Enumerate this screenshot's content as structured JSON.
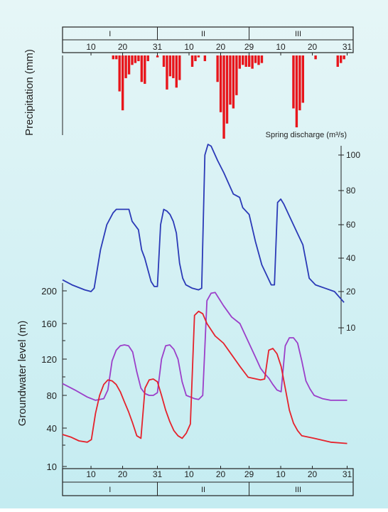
{
  "colors": {
    "bg_top": "#e6f6f7",
    "bg_bottom": "#c4ecf1",
    "precip": "#e8151b",
    "discharge": "#2b3ab7",
    "gw_upper": "#9b3fc9",
    "gw_lower": "#e5222c",
    "ink": "#222222"
  },
  "chart_data": {
    "type": "line",
    "x_unit": "day",
    "months": [
      "I",
      "II",
      "III"
    ],
    "day_ticks": [
      "10",
      "20",
      "31",
      "10",
      "20",
      "29",
      "10",
      "20",
      "31"
    ],
    "precipitation": {
      "ylabel": "Precipitation (mm)",
      "type": "bar",
      "values": [
        [
          17,
          4
        ],
        [
          18,
          4
        ],
        [
          19,
          38
        ],
        [
          20,
          58
        ],
        [
          21,
          24
        ],
        [
          22,
          20
        ],
        [
          23,
          10
        ],
        [
          24,
          8
        ],
        [
          25,
          6
        ],
        [
          26,
          28
        ],
        [
          27,
          30
        ],
        [
          28,
          6
        ],
        [
          31,
          2
        ],
        [
          33,
          12
        ],
        [
          34,
          36
        ],
        [
          35,
          22
        ],
        [
          36,
          24
        ],
        [
          37,
          34
        ],
        [
          38,
          26
        ],
        [
          42,
          12
        ],
        [
          43,
          6
        ],
        [
          44,
          2
        ],
        [
          46,
          6
        ],
        [
          50,
          28
        ],
        [
          51,
          60
        ],
        [
          52,
          88
        ],
        [
          53,
          72
        ],
        [
          54,
          52
        ],
        [
          55,
          56
        ],
        [
          56,
          42
        ],
        [
          57,
          14
        ],
        [
          58,
          10
        ],
        [
          59,
          12
        ],
        [
          60,
          12
        ],
        [
          61,
          14
        ],
        [
          62,
          8
        ],
        [
          63,
          10
        ],
        [
          64,
          8
        ],
        [
          74,
          56
        ],
        [
          75,
          76
        ],
        [
          76,
          58
        ],
        [
          77,
          50
        ],
        [
          81,
          4
        ],
        [
          88,
          12
        ],
        [
          89,
          8
        ],
        [
          90,
          4
        ]
      ]
    },
    "discharge": {
      "ylabel": "Spring discharge (m³/s)",
      "yticks": [
        "10",
        "20",
        "40",
        "60",
        "80",
        "100"
      ],
      "values": [
        [
          1,
          27
        ],
        [
          4,
          24
        ],
        [
          8,
          21
        ],
        [
          10,
          20
        ],
        [
          11,
          22
        ],
        [
          13,
          45
        ],
        [
          15,
          60
        ],
        [
          17,
          67
        ],
        [
          18,
          69
        ],
        [
          20,
          69
        ],
        [
          22,
          69
        ],
        [
          23,
          62
        ],
        [
          25,
          57
        ],
        [
          26,
          45
        ],
        [
          27,
          40
        ],
        [
          29,
          26
        ],
        [
          30,
          23
        ],
        [
          31,
          23
        ],
        [
          32,
          60
        ],
        [
          33,
          69
        ],
        [
          34,
          68
        ],
        [
          35,
          66
        ],
        [
          36,
          62
        ],
        [
          37,
          55
        ],
        [
          38,
          37
        ],
        [
          39,
          28
        ],
        [
          40,
          24
        ],
        [
          42,
          22
        ],
        [
          44,
          21
        ],
        [
          45,
          22
        ],
        [
          46,
          100
        ],
        [
          47,
          106
        ],
        [
          48,
          105
        ],
        [
          50,
          97
        ],
        [
          52,
          90
        ],
        [
          55,
          78
        ],
        [
          57,
          76
        ],
        [
          58,
          70
        ],
        [
          60,
          66
        ],
        [
          62,
          50
        ],
        [
          64,
          36
        ],
        [
          66,
          28
        ],
        [
          67,
          24
        ],
        [
          68,
          24
        ],
        [
          69,
          73
        ],
        [
          70,
          75
        ],
        [
          71,
          72
        ],
        [
          73,
          64
        ],
        [
          75,
          56
        ],
        [
          77,
          48
        ],
        [
          78,
          38
        ],
        [
          79,
          28
        ],
        [
          81,
          24
        ],
        [
          84,
          22
        ],
        [
          87,
          20
        ],
        [
          90,
          17
        ]
      ]
    },
    "groundwater": {
      "ylabel": "Groundwater level (m)",
      "yticks": [
        "10",
        "40",
        "80",
        "120",
        "160",
        "200"
      ],
      "series": [
        {
          "values": [
            [
              1,
              93
            ],
            [
              4,
              86
            ],
            [
              7,
              78
            ],
            [
              9,
              74
            ],
            [
              11,
              76
            ],
            [
              12,
              86
            ],
            [
              13,
              118
            ],
            [
              14,
              130
            ],
            [
              15,
              135
            ],
            [
              16,
              136
            ],
            [
              17,
              135
            ],
            [
              18,
              128
            ],
            [
              19,
              106
            ],
            [
              20,
              88
            ],
            [
              21,
              82
            ],
            [
              22,
              80
            ],
            [
              23,
              80
            ],
            [
              24,
              83
            ],
            [
              25,
              120
            ],
            [
              26,
              135
            ],
            [
              27,
              136
            ],
            [
              28,
              131
            ],
            [
              29,
              120
            ],
            [
              30,
              95
            ],
            [
              31,
              80
            ],
            [
              32,
              78
            ],
            [
              33,
              76
            ],
            [
              34,
              75
            ],
            [
              35,
              80
            ],
            [
              36,
              188
            ],
            [
              37,
              197
            ],
            [
              38,
              198
            ],
            [
              39,
              190
            ],
            [
              40,
              182
            ],
            [
              42,
              168
            ],
            [
              44,
              160
            ],
            [
              46,
              140
            ],
            [
              48,
              120
            ],
            [
              49,
              110
            ],
            [
              50,
              104
            ],
            [
              51,
              99
            ],
            [
              52,
              92
            ],
            [
              53,
              86
            ],
            [
              54,
              84
            ],
            [
              55,
              135
            ],
            [
              56,
              144
            ],
            [
              57,
              144
            ],
            [
              58,
              138
            ],
            [
              59,
              118
            ],
            [
              60,
              96
            ],
            [
              61,
              87
            ],
            [
              62,
              80
            ],
            [
              64,
              76
            ],
            [
              66,
              74
            ],
            [
              70,
              74
            ]
          ]
        },
        {
          "values": [
            [
              1,
              35
            ],
            [
              3,
              33
            ],
            [
              5,
              30
            ],
            [
              7,
              29
            ],
            [
              8,
              31
            ],
            [
              9,
              58
            ],
            [
              10,
              80
            ],
            [
              11,
              92
            ],
            [
              12,
              97
            ],
            [
              13,
              96
            ],
            [
              14,
              92
            ],
            [
              15,
              84
            ],
            [
              16,
              72
            ],
            [
              17,
              60
            ],
            [
              18,
              46
            ],
            [
              19,
              34
            ],
            [
              20,
              32
            ],
            [
              21,
              88
            ],
            [
              22,
              97
            ],
            [
              23,
              98
            ],
            [
              24,
              95
            ],
            [
              25,
              80
            ],
            [
              26,
              62
            ],
            [
              27,
              48
            ],
            [
              28,
              38
            ],
            [
              29,
              34
            ],
            [
              30,
              32
            ],
            [
              31,
              36
            ],
            [
              32,
              45
            ],
            [
              33,
              170
            ],
            [
              34,
              175
            ],
            [
              35,
              172
            ],
            [
              36,
              160
            ],
            [
              38,
              146
            ],
            [
              40,
              138
            ],
            [
              42,
              125
            ],
            [
              44,
              112
            ],
            [
              46,
              100
            ],
            [
              48,
              98
            ],
            [
              49,
              97
            ],
            [
              50,
              98
            ],
            [
              51,
              130
            ],
            [
              52,
              132
            ],
            [
              53,
              126
            ],
            [
              54,
              112
            ],
            [
              55,
              88
            ],
            [
              56,
              62
            ],
            [
              57,
              46
            ],
            [
              58,
              38
            ],
            [
              59,
              34
            ],
            [
              62,
              32
            ],
            [
              66,
              29
            ],
            [
              70,
              28
            ]
          ]
        }
      ]
    }
  }
}
